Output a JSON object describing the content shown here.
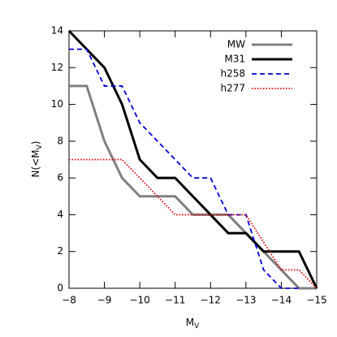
{
  "chart_data": {
    "type": "line",
    "xlabel": {
      "main": "M",
      "sub": "V"
    },
    "ylabel": {
      "main": "N(<M",
      "sub": "V",
      "end": ")"
    },
    "xlim": [
      -8,
      -15
    ],
    "ylim": [
      0,
      14
    ],
    "xticks": [
      {
        "value": -8,
        "label": "−8"
      },
      {
        "value": -9,
        "label": "−9"
      },
      {
        "value": -10,
        "label": "−10"
      },
      {
        "value": -11,
        "label": "−11"
      },
      {
        "value": -12,
        "label": "−12"
      },
      {
        "value": -13,
        "label": "−13"
      },
      {
        "value": -14,
        "label": "−14"
      },
      {
        "value": -15,
        "label": "−15"
      }
    ],
    "yticks": [
      0,
      2,
      4,
      6,
      8,
      10,
      12,
      14
    ],
    "legend": "upper right",
    "series": [
      {
        "name": "MW",
        "color": "#808080",
        "width": 3,
        "dash": "solid",
        "x": [
          -8,
          -8.5,
          -9,
          -9.5,
          -10,
          -11,
          -11.5,
          -12.5,
          -14.5,
          -15
        ],
        "values": [
          11,
          11,
          8,
          6,
          5,
          5,
          4,
          4,
          0,
          0
        ]
      },
      {
        "name": "M31",
        "color": "#000000",
        "width": 3,
        "dash": "solid",
        "x": [
          -8,
          -9,
          -9.5,
          -10,
          -10.5,
          -11,
          -12,
          -12.5,
          -13,
          -13.5,
          -14.5,
          -15
        ],
        "values": [
          14,
          12,
          10,
          7,
          6,
          6,
          4,
          3,
          3,
          2,
          2,
          0
        ]
      },
      {
        "name": "h258",
        "color": "#0000dd",
        "width": 1.8,
        "dash": "dashed",
        "x": [
          -8,
          -8.5,
          -9,
          -9.5,
          -10,
          -11,
          -11.5,
          -12,
          -12.5,
          -13,
          -13.5,
          -14,
          -14.5
        ],
        "values": [
          13,
          13,
          11,
          11,
          9,
          7,
          6,
          6,
          4,
          4,
          1,
          0,
          0
        ]
      },
      {
        "name": "h277",
        "color": "#dd0000",
        "width": 1.8,
        "dash": "dotted",
        "x": [
          -8,
          -9.5,
          -10,
          -10.5,
          -11,
          -13,
          -14,
          -14.5,
          -15
        ],
        "values": [
          7,
          7,
          6,
          5,
          4,
          4,
          1,
          1,
          0
        ]
      }
    ]
  }
}
